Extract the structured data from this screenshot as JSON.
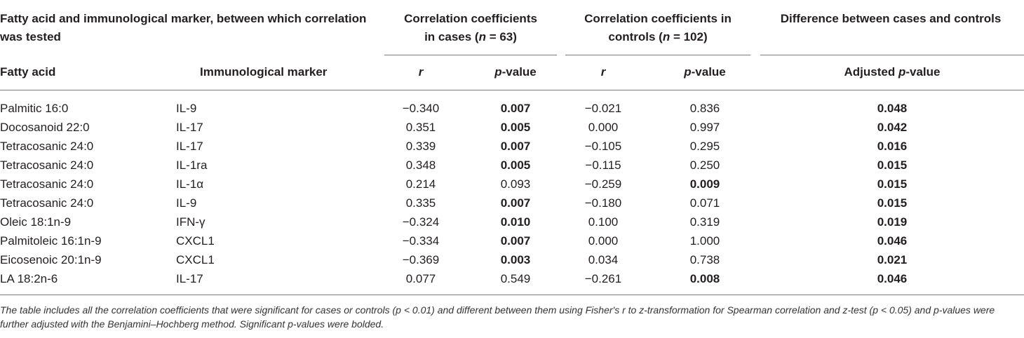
{
  "headers": {
    "pair_title": "Fatty acid and immunological marker, between which correlation was tested",
    "cases_title_a": "Correlation coefficients",
    "cases_title_b": "in cases (",
    "cases_n_sym": "n",
    "cases_n_rest": " = 63)",
    "controls_title_a": "Correlation coefficients in",
    "controls_title_b": "controls (",
    "controls_n_sym": "n",
    "controls_n_rest": " = 102)",
    "difference_title": "Difference between cases and controls",
    "fatty_acid": "Fatty acid",
    "immuno_marker": "Immunological marker",
    "r_symbol": "r",
    "p_symbol": "p",
    "p_suffix": "-value",
    "adjusted_prefix": "Adjusted "
  },
  "rows": [
    {
      "fatty_acid": "Palmitic 16:0",
      "marker": "IL-9",
      "r_cases": "−0.340",
      "p_cases": "0.007",
      "r_controls": "−0.021",
      "p_controls": "0.836",
      "p_adj": "0.048"
    },
    {
      "fatty_acid": "Docosanoid 22:0",
      "marker": "IL-17",
      "r_cases": "0.351",
      "p_cases": "0.005",
      "r_controls": "0.000",
      "p_controls": "0.997",
      "p_adj": "0.042"
    },
    {
      "fatty_acid": "Tetracosanic 24:0",
      "marker": "IL-17",
      "r_cases": "0.339",
      "p_cases": "0.007",
      "r_controls": "−0.105",
      "p_controls": "0.295",
      "p_adj": "0.016"
    },
    {
      "fatty_acid": "Tetracosanic 24:0",
      "marker": "IL-1ra",
      "r_cases": "0.348",
      "p_cases": "0.005",
      "r_controls": "−0.115",
      "p_controls": "0.250",
      "p_adj": "0.015"
    },
    {
      "fatty_acid": "Tetracosanic 24:0",
      "marker": "IL-1α",
      "r_cases": "0.214",
      "p_cases": "0.093",
      "r_controls": "−0.259",
      "p_controls": "0.009",
      "p_adj": "0.015"
    },
    {
      "fatty_acid": "Tetracosanic 24:0",
      "marker": "IL-9",
      "r_cases": "0.335",
      "p_cases": "0.007",
      "r_controls": "−0.180",
      "p_controls": "0.071",
      "p_adj": "0.015"
    },
    {
      "fatty_acid": "Oleic 18:1n-9",
      "marker": "IFN-γ",
      "r_cases": "−0.324",
      "p_cases": "0.010",
      "r_controls": "0.100",
      "p_controls": "0.319",
      "p_adj": "0.019"
    },
    {
      "fatty_acid": "Palmitoleic 16:1n-9",
      "marker": "CXCL1",
      "r_cases": "−0.334",
      "p_cases": "0.007",
      "r_controls": "0.000",
      "p_controls": "1.000",
      "p_adj": "0.046"
    },
    {
      "fatty_acid": "Eicosenoic 20:1n-9",
      "marker": "CXCL1",
      "r_cases": "−0.369",
      "p_cases": "0.003",
      "r_controls": "0.034",
      "p_controls": "0.738",
      "p_adj": "0.021"
    },
    {
      "fatty_acid": "LA 18:2n-6",
      "marker": "IL-17",
      "r_cases": "0.077",
      "p_cases": "0.549",
      "r_controls": "−0.261",
      "p_controls": "0.008",
      "p_adj": "0.046"
    }
  ],
  "footnote": "The table includes all the correlation coefficients that were significant for cases or controls (p < 0.01) and different between them using Fisher's r to z-transformation for Spearman correlation and z-test (p < 0.05) and p-values were further adjusted with the Benjamini–Hochberg method. Significant p-values were bolded."
}
